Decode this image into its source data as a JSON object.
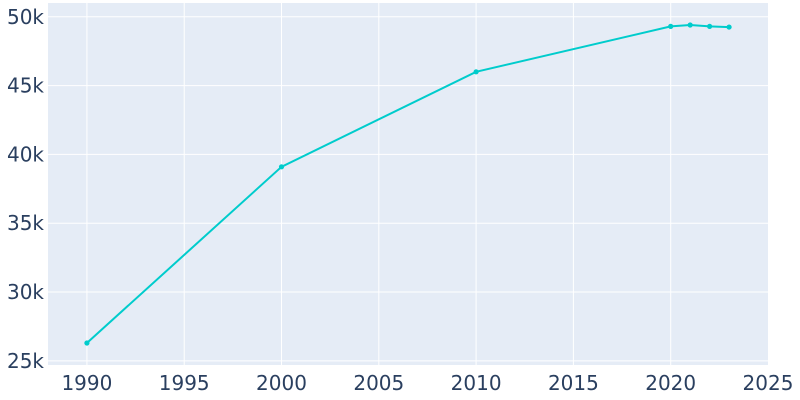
{
  "chart_data": {
    "type": "line",
    "title": "",
    "xlabel": "",
    "ylabel": "",
    "xlim": [
      1988,
      2025
    ],
    "ylim": [
      24700,
      51000
    ],
    "grid": true,
    "legend": "none",
    "x_ticks": [
      1990,
      1995,
      2000,
      2005,
      2010,
      2015,
      2020,
      2025
    ],
    "x_tick_labels": [
      "1990",
      "1995",
      "2000",
      "2005",
      "2010",
      "2015",
      "2020",
      "2025"
    ],
    "y_ticks": [
      25000,
      30000,
      35000,
      40000,
      45000,
      50000
    ],
    "y_tick_labels": [
      "25k",
      "30k",
      "35k",
      "40k",
      "45k",
      "50k"
    ],
    "series": [
      {
        "color": "#00CCCC",
        "x": [
          1990,
          2000,
          2010,
          2020,
          2021,
          2022,
          2023
        ],
        "y": [
          26300,
          39100,
          46000,
          49300,
          49400,
          49300,
          49250
        ]
      }
    ],
    "colors": {
      "plot_background": "#E5ECF6",
      "grid": "#FFFFFF",
      "text": "#2A3F5F"
    }
  }
}
